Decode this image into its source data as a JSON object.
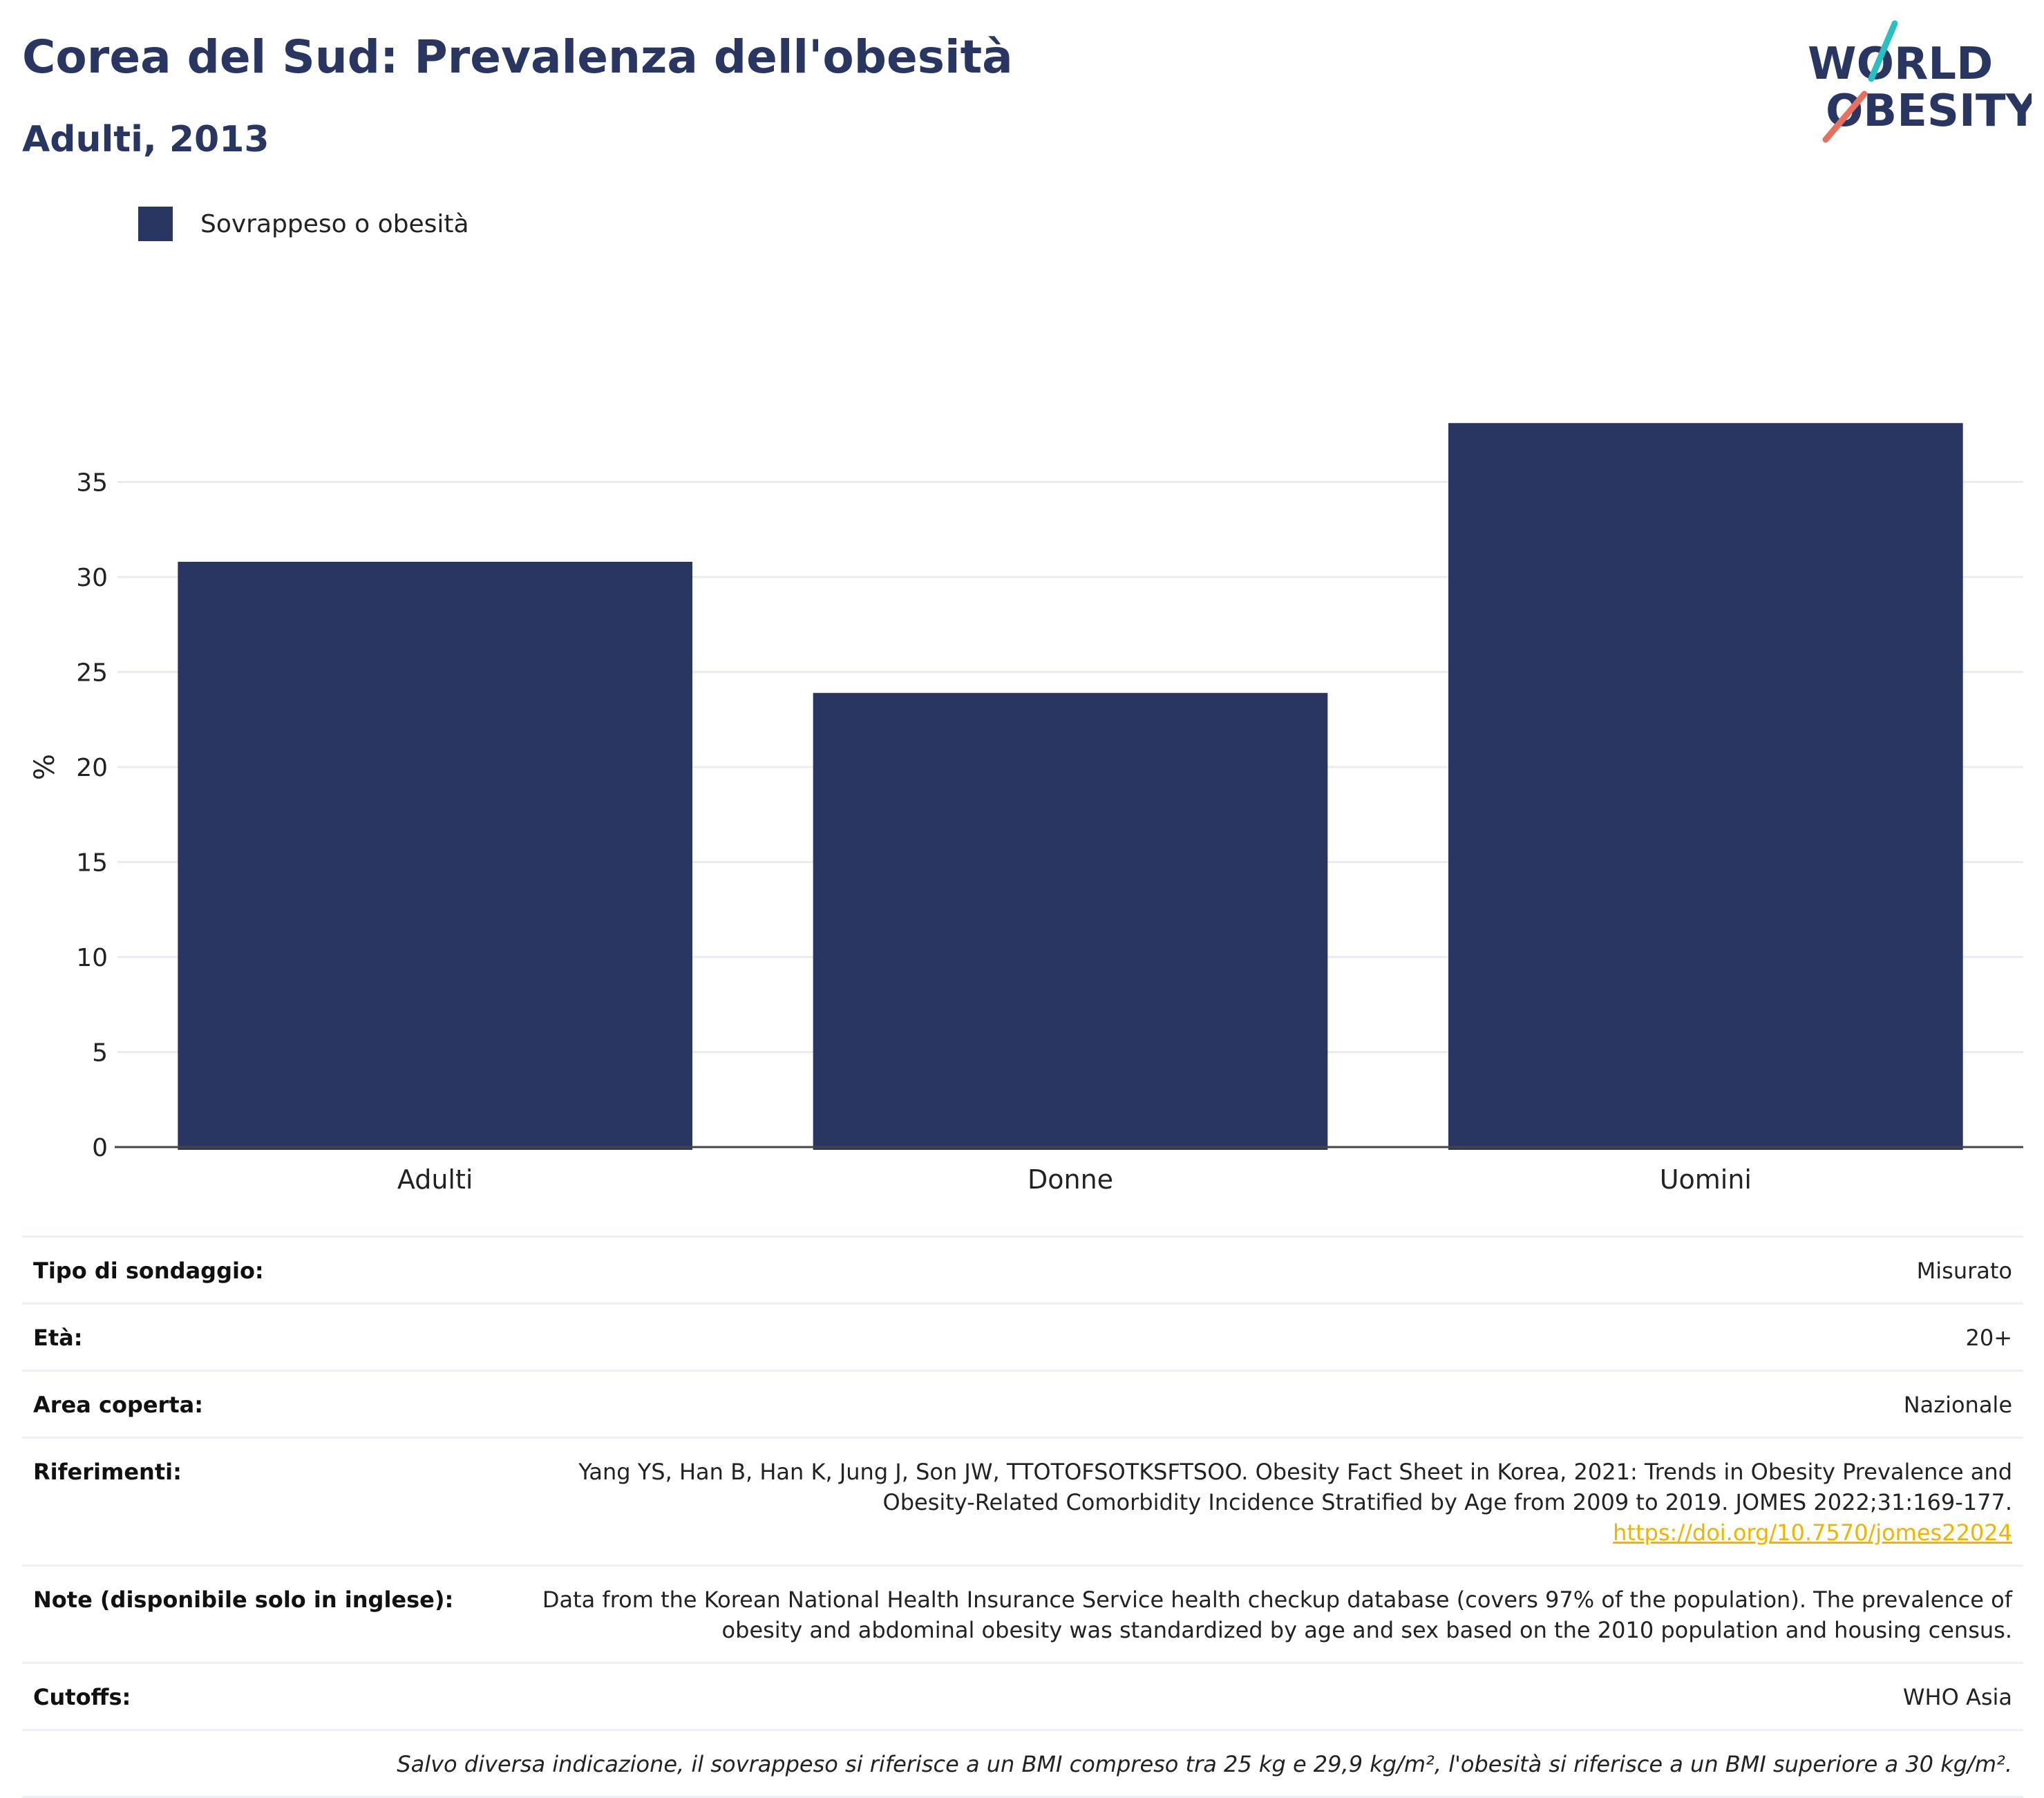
{
  "header": {
    "title": "Corea del Sud: Prevalenza dell'obesità",
    "subtitle": "Adulti, 2013"
  },
  "logo": {
    "line1": "WORLD",
    "line2": "OBESITY",
    "icon": "world-obesity-logo"
  },
  "colors": {
    "bar": "#2a3662",
    "title": "#2a3662",
    "grid": "#e8ebf2",
    "link": "#f0b400",
    "logo_teal": "#2cbfbf",
    "logo_coral": "#e8705f"
  },
  "chart_data": {
    "type": "bar",
    "categories": [
      "Adulti",
      "Donne",
      "Uomini"
    ],
    "series": [
      {
        "name": "Sovrappeso o obesità",
        "values": [
          30.8,
          23.9,
          38.1
        ]
      }
    ],
    "ylabel": "%",
    "ylim": [
      0,
      40
    ],
    "yticks": [
      0,
      5,
      10,
      15,
      20,
      25,
      30,
      35
    ],
    "grid": true,
    "legend_position": "top-left"
  },
  "info": {
    "survey_type": {
      "label": "Tipo di sondaggio:",
      "value": "Misurato"
    },
    "age": {
      "label": "Età:",
      "value": "20+"
    },
    "area": {
      "label": "Area coperta:",
      "value": "Nazionale"
    },
    "references": {
      "label": "Riferimenti:",
      "line1": "Yang YS, Han B, Han K, Jung J, Son JW, TTOTOFSOTKSFTSOO. Obesity Fact Sheet in Korea, 2021: Trends in Obesity Prevalence and",
      "line2": "Obesity-Related Comorbidity Incidence Stratified by Age from 2009 to 2019. JOMES 2022;31:169-177.",
      "link": "https://doi.org/10.7570/jomes22024"
    },
    "notes": {
      "label": "Note (disponibile solo in inglese):",
      "line1": "Data from the Korean National Health Insurance Service health checkup database (covers 97% of the population). The prevalence of",
      "line2": "obesity and abdominal obesity was standardized by age and sex based on the 2010 population and housing census."
    },
    "cutoffs": {
      "label": "Cutoffs:",
      "value": "WHO Asia"
    },
    "footnote": "Salvo diversa indicazione, il sovrappeso si riferisce a un BMI compreso tra 25 kg e 29,9 kg/m², l'obesità si riferisce a un BMI superiore a 30 kg/m²."
  }
}
